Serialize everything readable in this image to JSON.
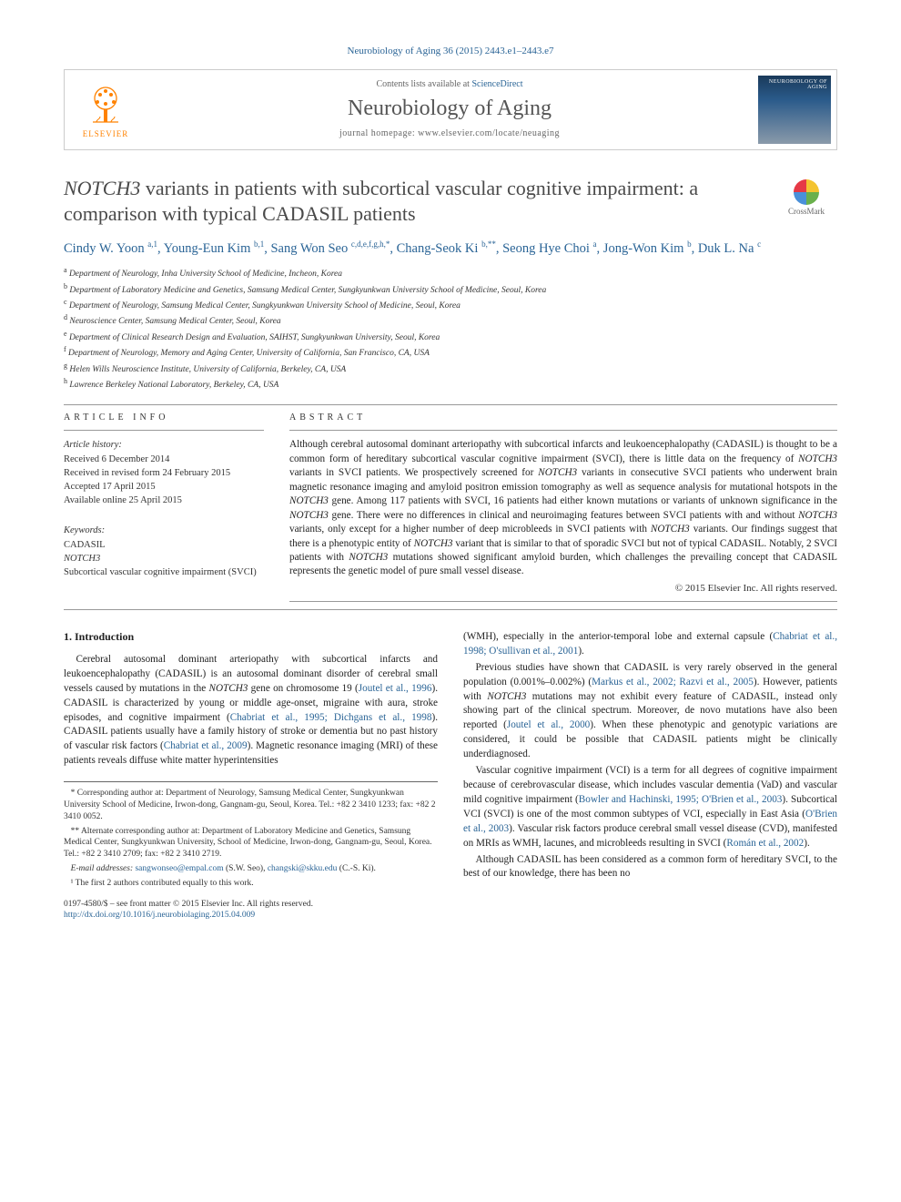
{
  "journal_ref_prefix": "Neurobiology of Aging 36 (2015) 2443.e1–2443.e7",
  "header": {
    "contents_prefix": "Contents lists available at ",
    "contents_link": "ScienceDirect",
    "journal_name": "Neurobiology of Aging",
    "homepage_prefix": "journal homepage: ",
    "homepage_url": "www.elsevier.com/locate/neuaging",
    "elsevier_label": "ELSEVIER",
    "cover_title": "NEUROBIOLOGY OF AGING"
  },
  "crossmark_label": "CrossMark",
  "title_prefix_italic": "NOTCH3",
  "title_rest": " variants in patients with subcortical vascular cognitive impairment: a comparison with typical CADASIL patients",
  "authors_html": "Cindy W. Yoon <sup>a,1</sup>, Young-Eun Kim <sup>b,1</sup>, Sang Won Seo <sup>c,d,e,f,g,h,*</sup>, Chang-Seok Ki <sup>b,**</sup>, Seong Hye Choi <sup>a</sup>, Jong-Won Kim <sup>b</sup>, Duk L. Na <sup>c</sup>",
  "affiliations": [
    {
      "sup": "a",
      "text": "Department of Neurology, Inha University School of Medicine, Incheon, Korea"
    },
    {
      "sup": "b",
      "text": "Department of Laboratory Medicine and Genetics, Samsung Medical Center, Sungkyunkwan University School of Medicine, Seoul, Korea"
    },
    {
      "sup": "c",
      "text": "Department of Neurology, Samsung Medical Center, Sungkyunkwan University School of Medicine, Seoul, Korea"
    },
    {
      "sup": "d",
      "text": "Neuroscience Center, Samsung Medical Center, Seoul, Korea"
    },
    {
      "sup": "e",
      "text": "Department of Clinical Research Design and Evaluation, SAIHST, Sungkyunkwan University, Seoul, Korea"
    },
    {
      "sup": "f",
      "text": "Department of Neurology, Memory and Aging Center, University of California, San Francisco, CA, USA"
    },
    {
      "sup": "g",
      "text": "Helen Wills Neuroscience Institute, University of California, Berkeley, CA, USA"
    },
    {
      "sup": "h",
      "text": "Lawrence Berkeley National Laboratory, Berkeley, CA, USA"
    }
  ],
  "article_info_heading": "ARTICLE INFO",
  "abstract_heading": "ABSTRACT",
  "history": {
    "label": "Article history:",
    "received": "Received 6 December 2014",
    "revised": "Received in revised form 24 February 2015",
    "accepted": "Accepted 17 April 2015",
    "online": "Available online 25 April 2015"
  },
  "keywords": {
    "label": "Keywords:",
    "items": [
      "CADASIL",
      "NOTCH3",
      "Subcortical vascular cognitive impairment (SVCI)"
    ]
  },
  "abstract": "Although cerebral autosomal dominant arteriopathy with subcortical infarcts and leukoencephalopathy (CADASIL) is thought to be a common form of hereditary subcortical vascular cognitive impairment (SVCI), there is little data on the frequency of NOTCH3 variants in SVCI patients. We prospectively screened for NOTCH3 variants in consecutive SVCI patients who underwent brain magnetic resonance imaging and amyloid positron emission tomography as well as sequence analysis for mutational hotspots in the NOTCH3 gene. Among 117 patients with SVCI, 16 patients had either known mutations or variants of unknown significance in the NOTCH3 gene. There were no differences in clinical and neuroimaging features between SVCI patients with and without NOTCH3 variants, only except for a higher number of deep microbleeds in SVCI patients with NOTCH3 variants. Our findings suggest that there is a phenotypic entity of NOTCH3 variant that is similar to that of sporadic SVCI but not of typical CADASIL. Notably, 2 SVCI patients with NOTCH3 mutations showed significant amyloid burden, which challenges the prevailing concept that CADASIL represents the genetic model of pure small vessel disease.",
  "copyright": "© 2015 Elsevier Inc. All rights reserved.",
  "intro_heading": "1. Introduction",
  "body": {
    "p1a": "Cerebral autosomal dominant arteriopathy with subcortical infarcts and leukoencephalopathy (CADASIL) is an autosomal dominant disorder of cerebral small vessels caused by mutations in the ",
    "p1_cite1": "Joutel et al., 1996",
    "p1b": "). CADASIL is characterized by young or middle age-onset, migraine with aura, stroke episodes, and cognitive impairment (",
    "p1_cite2": "Chabriat et al., 1995; Dichgans et al., 1998",
    "p1c": "). CADASIL patients usually have a family history of stroke or dementia but no past history of vascular risk factors (",
    "p1_cite3": "Chabriat et al., 2009",
    "p1d": "). Magnetic resonance imaging (MRI) of these patients reveals diffuse white matter hyperintensities",
    "p1_notch3": "NOTCH3",
    "p1_chrom": " gene on chromosome 19 (",
    "p2_top": "(WMH), especially in the anterior-temporal lobe and external capsule (",
    "p2_cite": "Chabriat et al., 1998; O'sullivan et al., 2001",
    "p2_end": ").",
    "p3a": "Previous studies have shown that CADASIL is very rarely observed in the general population (0.001%–0.002%) (",
    "p3_cite1": "Markus et al., 2002; Razvi et al., 2005",
    "p3b": "). However, patients with ",
    "p3_notch": "NOTCH3",
    "p3c": " mutations may not exhibit every feature of CADASIL, instead only showing part of the clinical spectrum. Moreover, de novo mutations have also been reported (",
    "p3_cite2": "Joutel et al., 2000",
    "p3d": "). When these phenotypic and genotypic variations are considered, it could be possible that CADASIL patients might be clinically underdiagnosed.",
    "p4a": "Vascular cognitive impairment (VCI) is a term for all degrees of cognitive impairment because of cerebrovascular disease, which includes vascular dementia (VaD) and vascular mild cognitive impairment (",
    "p4_cite1": "Bowler and Hachinski, 1995; O'Brien et al., 2003",
    "p4b": "). Subcortical VCI (SVCI) is one of the most common subtypes of VCI, especially in East Asia (",
    "p4_cite2": "O'Brien et al., 2003",
    "p4c": "). Vascular risk factors produce cerebral small vessel disease (CVD), manifested on MRIs as WMH, lacunes, and microbleeds resulting in SVCI (",
    "p4_cite3": "Román et al., 2002",
    "p4d": ").",
    "p5": "Although CADASIL has been considered as a common form of hereditary SVCI, to the best of our knowledge, there has been no"
  },
  "footnotes": {
    "corr1": "* Corresponding author at: Department of Neurology, Samsung Medical Center, Sungkyunkwan University School of Medicine, Irwon-dong, Gangnam-gu, Seoul, Korea. Tel.: +82 2 3410 1233; fax: +82 2 3410 0052.",
    "corr2": "** Alternate corresponding author at: Department of Laboratory Medicine and Genetics, Samsung Medical Center, Sungkyunkwan University, School of Medicine, Irwon-dong, Gangnam-gu, Seoul, Korea. Tel.: +82 2 3410 2709; fax: +82 2 3410 2719.",
    "email_label": "E-mail addresses: ",
    "email1": "sangwonseo@empal.com",
    "email1_who": " (S.W. Seo), ",
    "email2": "changski@skku.edu",
    "email2_who": " (C.-S. Ki).",
    "note1": "¹ The first 2 authors contributed equally to this work."
  },
  "footer": {
    "line1": "0197-4580/$ – see front matter © 2015 Elsevier Inc. All rights reserved.",
    "doi": "http://dx.doi.org/10.1016/j.neurobiolaging.2015.04.009"
  },
  "colors": {
    "link": "#2a6496",
    "elsevier": "#ff8200",
    "border": "#cccccc",
    "text": "#222222",
    "crossmark_r": "#e63946",
    "crossmark_y": "#f4c430",
    "crossmark_g": "#6ab04c",
    "crossmark_b": "#4a90d9"
  }
}
